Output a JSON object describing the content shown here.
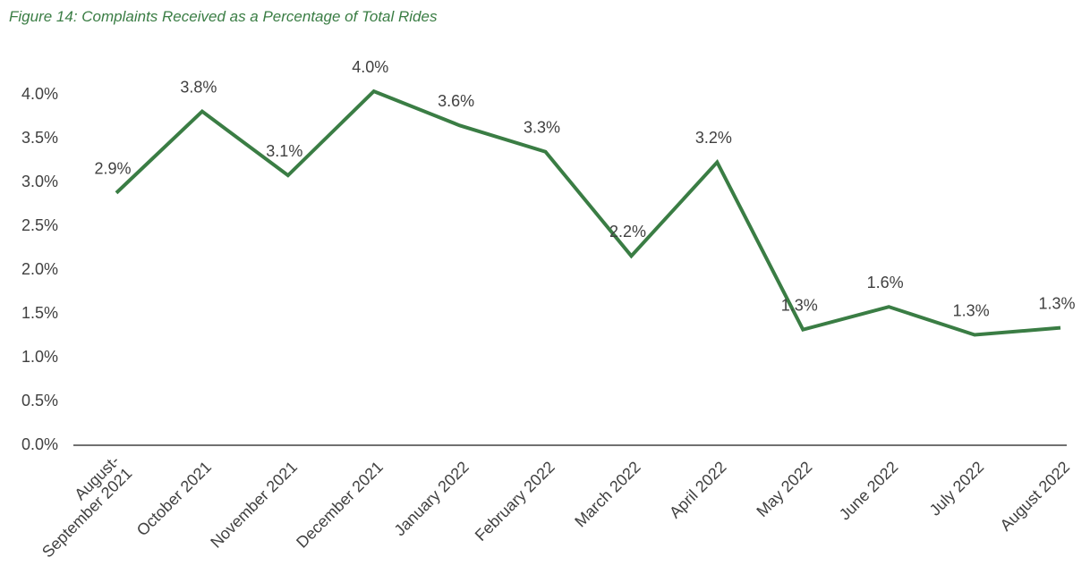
{
  "chart_data": {
    "type": "line",
    "title": "Figure 14: Complaints Received as a Percentage of Total Rides",
    "categories": [
      "August-September 2021",
      "October 2021",
      "November 2021",
      "December 2021",
      "January 2022",
      "February 2022",
      "March 2022",
      "April 2022",
      "May 2022",
      "June 2022",
      "July 2022",
      "August 2022"
    ],
    "series": [
      {
        "name": "Complaints Received as a Percentage of Total Rides",
        "color": "#3a7d44",
        "values": [
          2.88,
          3.81,
          3.08,
          4.04,
          3.65,
          3.35,
          2.16,
          3.23,
          1.32,
          1.58,
          1.26,
          1.34
        ],
        "value_labels": [
          "2.9%",
          "3.8%",
          "3.1%",
          "4.0%",
          "3.6%",
          "3.3%",
          "2.2%",
          "3.2%",
          "1.3%",
          "1.6%",
          "1.3%",
          "1.3%"
        ]
      }
    ],
    "ylim": [
      0,
      4.0
    ],
    "yticks": [
      {
        "value": 0,
        "label": "0.0%"
      },
      {
        "value": 0.5,
        "label": "0.5%"
      },
      {
        "value": 1.0,
        "label": "1.0%"
      },
      {
        "value": 1.5,
        "label": "1.5%"
      },
      {
        "value": 2.0,
        "label": "2.0%"
      },
      {
        "value": 2.5,
        "label": "2.5%"
      },
      {
        "value": 3.0,
        "label": "3.0%"
      },
      {
        "value": 3.5,
        "label": "3.5%"
      },
      {
        "value": 4.0,
        "label": "4.0%"
      }
    ],
    "grid": false
  }
}
